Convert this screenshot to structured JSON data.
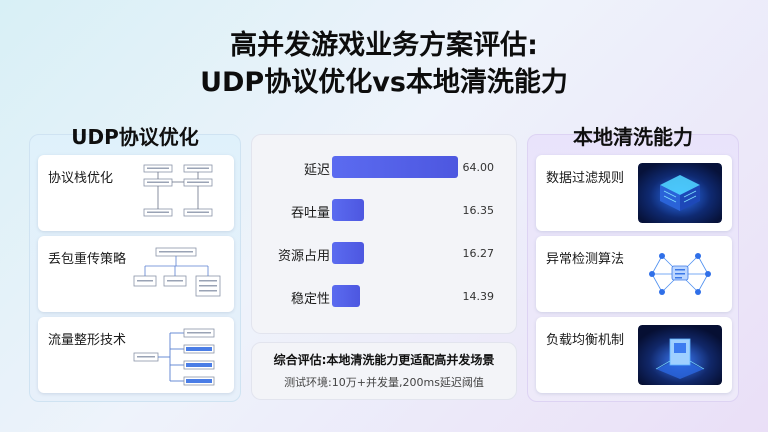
{
  "title": {
    "line1": "高并发游戏业务方案评估:",
    "line2": "UDP协议优化vs本地清洗能力"
  },
  "left_panel": {
    "heading": "UDP协议优化",
    "cards": [
      {
        "label": "协议栈优化",
        "icon": "flowchart-icon"
      },
      {
        "label": "丢包重传策略",
        "icon": "tree-diagram-icon"
      },
      {
        "label": "流量整形技术",
        "icon": "branch-diagram-icon"
      }
    ]
  },
  "right_panel": {
    "heading": "本地清洗能力",
    "cards": [
      {
        "label": "数据过滤规则",
        "icon": "server-filter-icon"
      },
      {
        "label": "异常检测算法",
        "icon": "network-graph-icon"
      },
      {
        "label": "负载均衡机制",
        "icon": "chip-balance-icon"
      }
    ]
  },
  "metrics": {
    "max": 64.0,
    "items": [
      {
        "label": "延迟",
        "value": 64.0,
        "display": "64.00"
      },
      {
        "label": "吞吐量",
        "value": 16.35,
        "display": "16.35"
      },
      {
        "label": "资源占用",
        "value": 16.27,
        "display": "16.27"
      },
      {
        "label": "稳定性",
        "value": 14.39,
        "display": "14.39"
      }
    ],
    "bar_color": "#5563e8"
  },
  "summary": {
    "main": "综合评估:本地清洗能力更适配高并发场景",
    "sub": "测试环境:10万+并发量,200ms延迟阈值"
  }
}
